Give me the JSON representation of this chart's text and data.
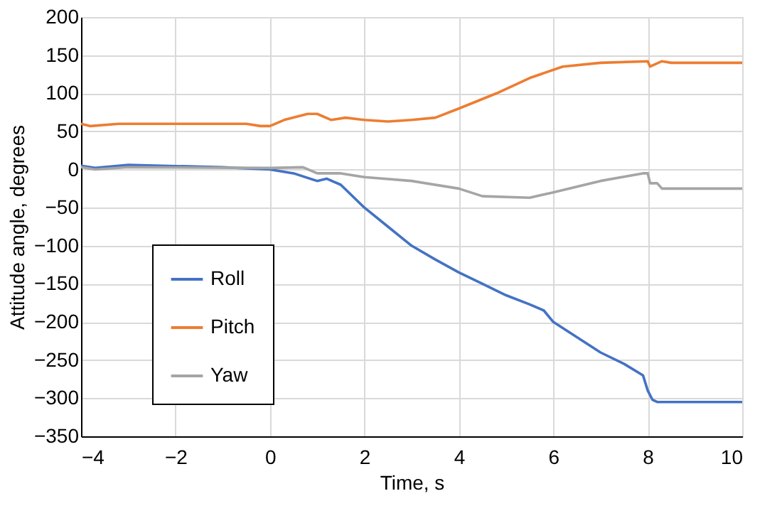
{
  "chart_data": {
    "type": "line",
    "xlabel": "Time, s",
    "ylabel": "Attitude angle, degrees",
    "xlim": [
      -4,
      10
    ],
    "ylim": [
      -350,
      200
    ],
    "xticks": [
      -4,
      -2,
      0,
      2,
      4,
      6,
      8,
      10
    ],
    "yticks": [
      -350,
      -300,
      -250,
      -200,
      -150,
      -100,
      -50,
      0,
      50,
      100,
      150,
      200
    ],
    "grid": true,
    "legend": "left",
    "line_style": "solid",
    "marker": "none",
    "series": [
      {
        "name": "Roll",
        "color": "#4472c4",
        "x": [
          -4,
          -3.7,
          -3,
          -1,
          0,
          0.5,
          1,
          1.2,
          1.5,
          2,
          2.5,
          3,
          3.5,
          4,
          4.5,
          5,
          5.5,
          5.8,
          6,
          6.5,
          7,
          7.5,
          7.9,
          8,
          8.1,
          8.2,
          10
        ],
        "values": [
          5,
          2,
          6,
          3,
          0,
          -5,
          -15,
          -12,
          -20,
          -50,
          -75,
          -100,
          -118,
          -135,
          -150,
          -165,
          -177,
          -185,
          -200,
          -220,
          -240,
          -255,
          -270,
          -290,
          -302,
          -305,
          -305
        ]
      },
      {
        "name": "Pitch",
        "color": "#ed7d31",
        "x": [
          -4,
          -3.8,
          -3.2,
          -0.5,
          -0.2,
          0,
          0.3,
          0.8,
          1,
          1.3,
          1.6,
          2,
          2.5,
          3,
          3.5,
          4,
          4.8,
          5.5,
          6.2,
          7,
          8,
          8.05,
          8.3,
          8.5,
          10
        ],
        "values": [
          60,
          57,
          60,
          60,
          57,
          57,
          65,
          73,
          73,
          65,
          68,
          65,
          63,
          65,
          68,
          80,
          100,
          120,
          135,
          140,
          142,
          135,
          142,
          140,
          140
        ]
      },
      {
        "name": "Yaw",
        "color": "#a5a5a5",
        "x": [
          -4,
          -3.7,
          -3,
          0,
          0.7,
          1,
          1.5,
          2,
          3,
          4,
          4.5,
          5.5,
          6,
          7,
          7.9,
          8,
          8.05,
          8.2,
          8.3,
          10
        ],
        "values": [
          3,
          0,
          3,
          2,
          3,
          -5,
          -5,
          -10,
          -15,
          -25,
          -35,
          -37,
          -30,
          -15,
          -5,
          -5,
          -18,
          -18,
          -25,
          -25
        ]
      }
    ]
  }
}
